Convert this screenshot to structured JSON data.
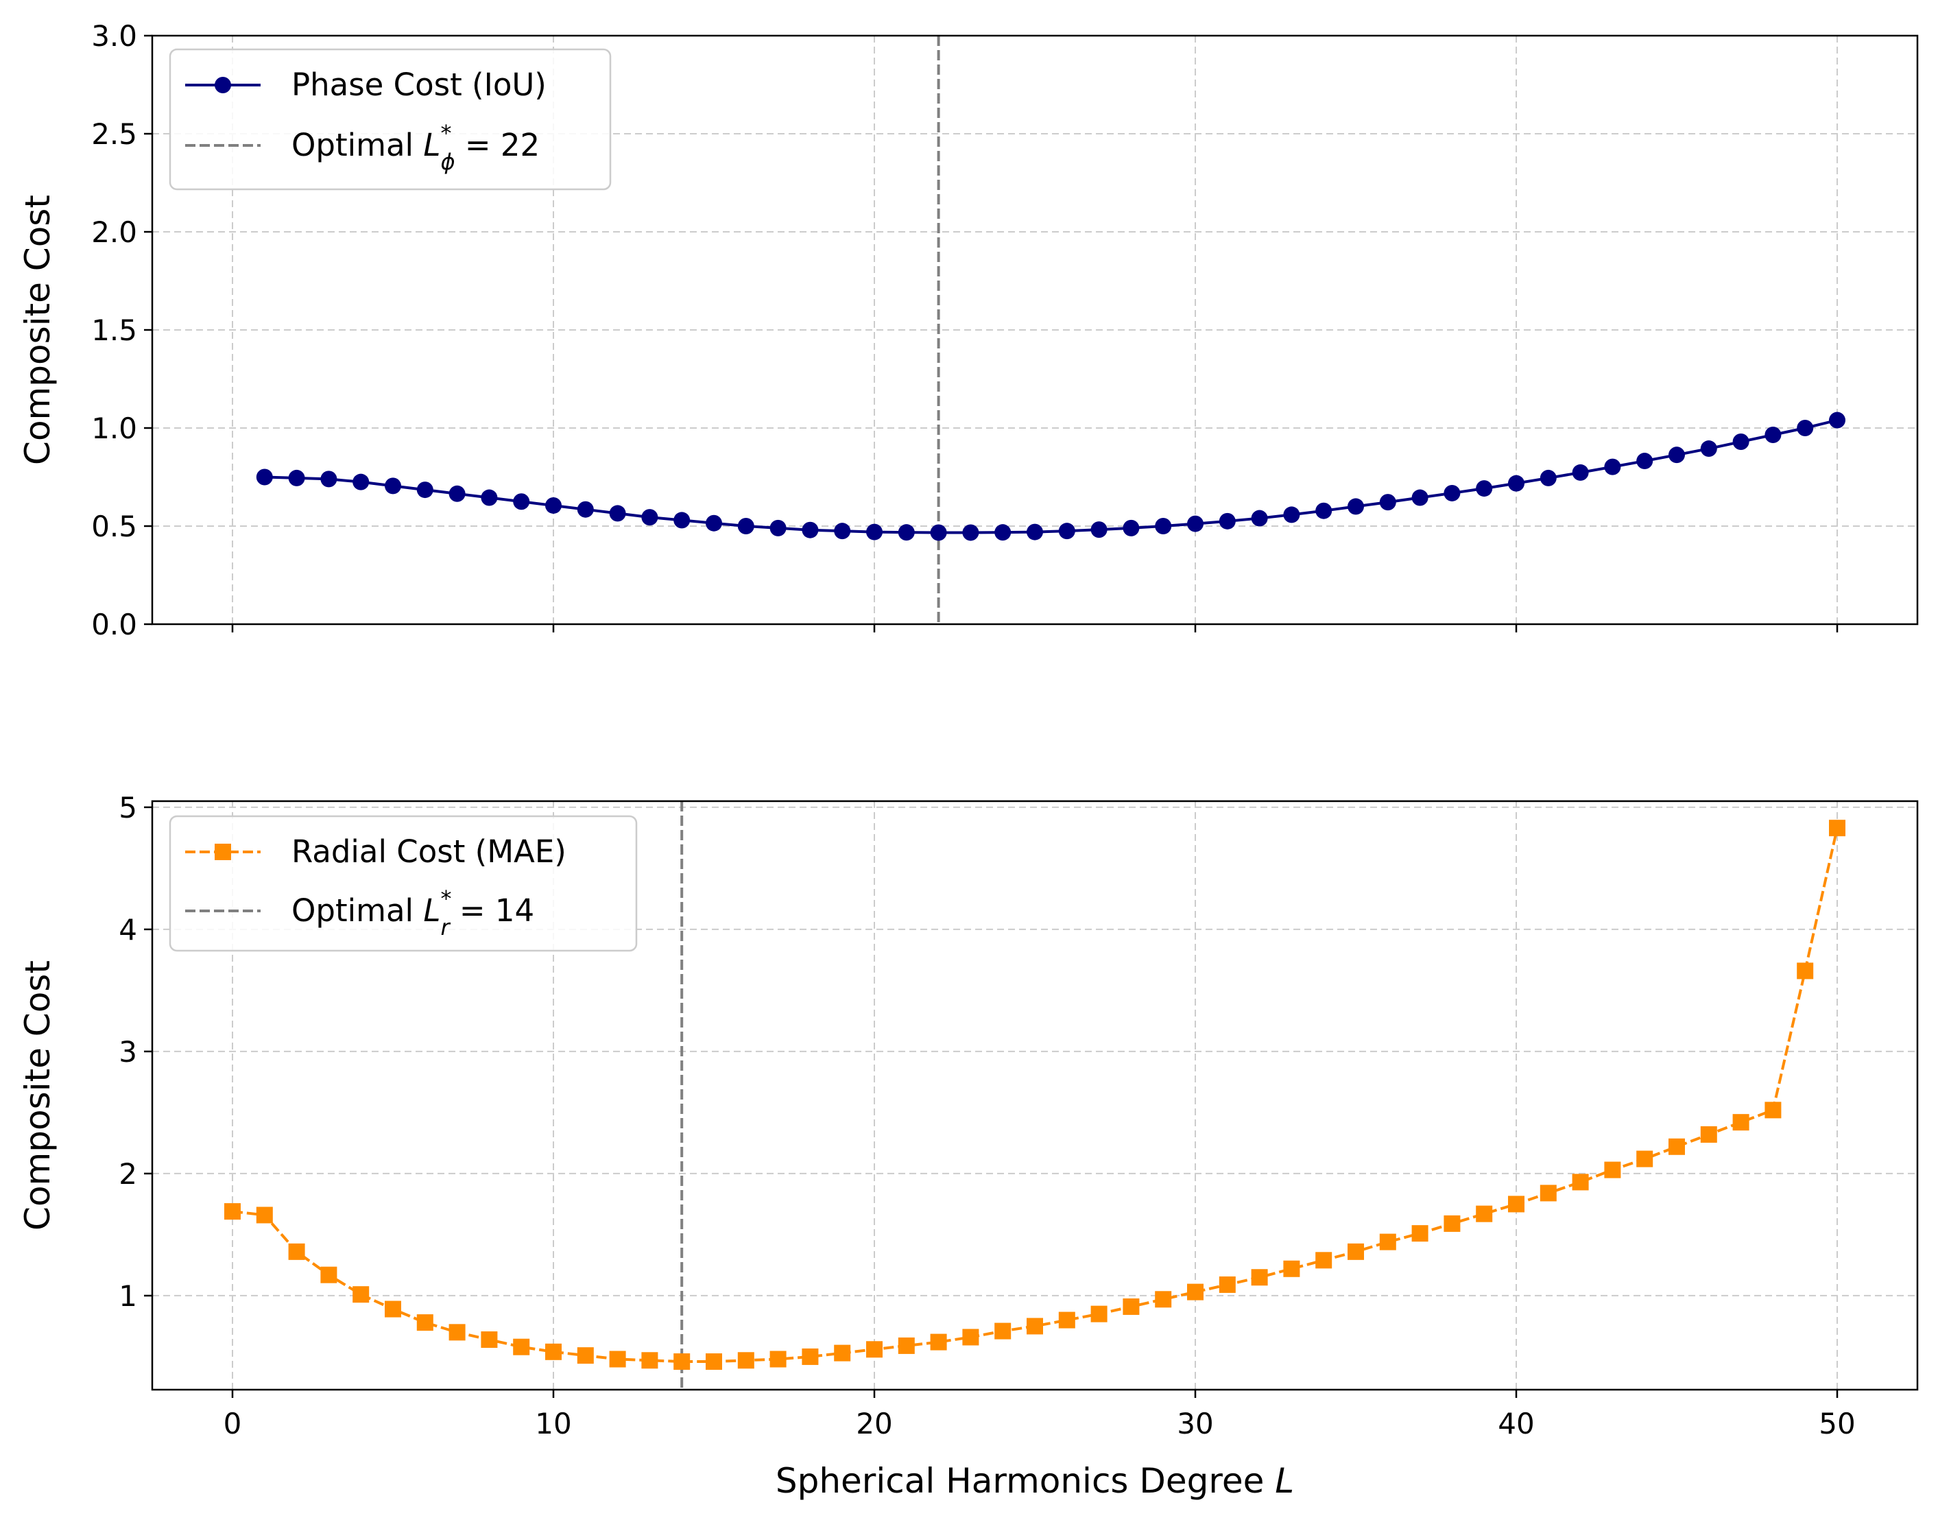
{
  "figure": {
    "xlabel_main": "Spherical Harmonics Degree ",
    "xlabel_var": "L"
  },
  "colors": {
    "phase": "#000080",
    "radial": "#FF8C00",
    "optimal": "#808080",
    "grid": "#cccccc"
  },
  "chart_data": [
    {
      "type": "line",
      "ylabel": "Composite Cost",
      "xlim": [
        -2.5,
        52.5
      ],
      "ylim": [
        0,
        3.0
      ],
      "xticks": [
        0,
        10,
        20,
        30,
        40,
        50
      ],
      "show_xtick_labels": false,
      "yticks": [
        0.0,
        0.5,
        1.0,
        1.5,
        2.0,
        2.5,
        3.0
      ],
      "ytick_labels": [
        "0.0",
        "0.5",
        "1.0",
        "1.5",
        "2.0",
        "2.5",
        "3.0"
      ],
      "grid": true,
      "legend_position": "top-left",
      "series": [
        {
          "name": "Phase Cost (IoU)",
          "marker": "circle",
          "linestyle": "solid",
          "x": [
            1,
            2,
            3,
            4,
            5,
            6,
            7,
            8,
            9,
            10,
            11,
            12,
            13,
            14,
            15,
            16,
            17,
            18,
            19,
            20,
            21,
            22,
            23,
            24,
            25,
            26,
            27,
            28,
            29,
            30,
            31,
            32,
            33,
            34,
            35,
            36,
            37,
            38,
            39,
            40,
            41,
            42,
            43,
            44,
            45,
            46,
            47,
            48,
            49,
            50
          ],
          "values": [
            0.75,
            0.745,
            0.74,
            0.725,
            0.705,
            0.685,
            0.665,
            0.645,
            0.625,
            0.605,
            0.585,
            0.565,
            0.545,
            0.53,
            0.515,
            0.5,
            0.49,
            0.48,
            0.475,
            0.47,
            0.468,
            0.467,
            0.467,
            0.468,
            0.47,
            0.475,
            0.482,
            0.49,
            0.5,
            0.512,
            0.525,
            0.54,
            0.558,
            0.578,
            0.6,
            0.622,
            0.645,
            0.668,
            0.692,
            0.718,
            0.745,
            0.773,
            0.802,
            0.832,
            0.863,
            0.895,
            0.93,
            0.965,
            1.0,
            1.04
          ]
        }
      ],
      "optimal": {
        "x": 22,
        "label_prefix": "Optimal ",
        "label_var": "L",
        "label_sup": "*",
        "label_sub": "ϕ",
        "label_suffix": " = 22"
      }
    },
    {
      "type": "line",
      "ylabel": "Composite Cost",
      "xlim": [
        -2.5,
        52.5
      ],
      "ylim": [
        0.23,
        5.05
      ],
      "xticks": [
        0,
        10,
        20,
        30,
        40,
        50
      ],
      "xtick_labels": [
        "0",
        "10",
        "20",
        "30",
        "40",
        "50"
      ],
      "show_xtick_labels": true,
      "yticks": [
        1,
        2,
        3,
        4,
        5
      ],
      "ytick_labels": [
        "1",
        "2",
        "3",
        "4",
        "5"
      ],
      "grid": true,
      "legend_position": "top-left",
      "series": [
        {
          "name": "Radial Cost (MAE)",
          "marker": "square",
          "linestyle": "dashed",
          "x": [
            0,
            1,
            2,
            3,
            4,
            5,
            6,
            7,
            8,
            9,
            10,
            11,
            12,
            13,
            14,
            15,
            16,
            17,
            18,
            19,
            20,
            21,
            22,
            23,
            24,
            25,
            26,
            27,
            28,
            29,
            30,
            31,
            32,
            33,
            34,
            35,
            36,
            37,
            38,
            39,
            40,
            41,
            42,
            43,
            44,
            45,
            46,
            47,
            48,
            49,
            50
          ],
          "values": [
            1.69,
            1.66,
            1.36,
            1.17,
            1.01,
            0.89,
            0.78,
            0.7,
            0.64,
            0.58,
            0.54,
            0.51,
            0.48,
            0.47,
            0.46,
            0.46,
            0.47,
            0.48,
            0.5,
            0.53,
            0.56,
            0.59,
            0.62,
            0.66,
            0.71,
            0.75,
            0.8,
            0.85,
            0.91,
            0.97,
            1.03,
            1.09,
            1.15,
            1.22,
            1.29,
            1.36,
            1.44,
            1.51,
            1.59,
            1.67,
            1.75,
            1.84,
            1.93,
            2.03,
            2.12,
            2.22,
            2.32,
            2.42,
            2.52,
            3.66,
            4.83
          ]
        }
      ],
      "optimal": {
        "x": 14,
        "label_prefix": "Optimal ",
        "label_var": "L",
        "label_sup": "*",
        "label_sub": "r",
        "label_suffix": " = 14"
      }
    }
  ]
}
